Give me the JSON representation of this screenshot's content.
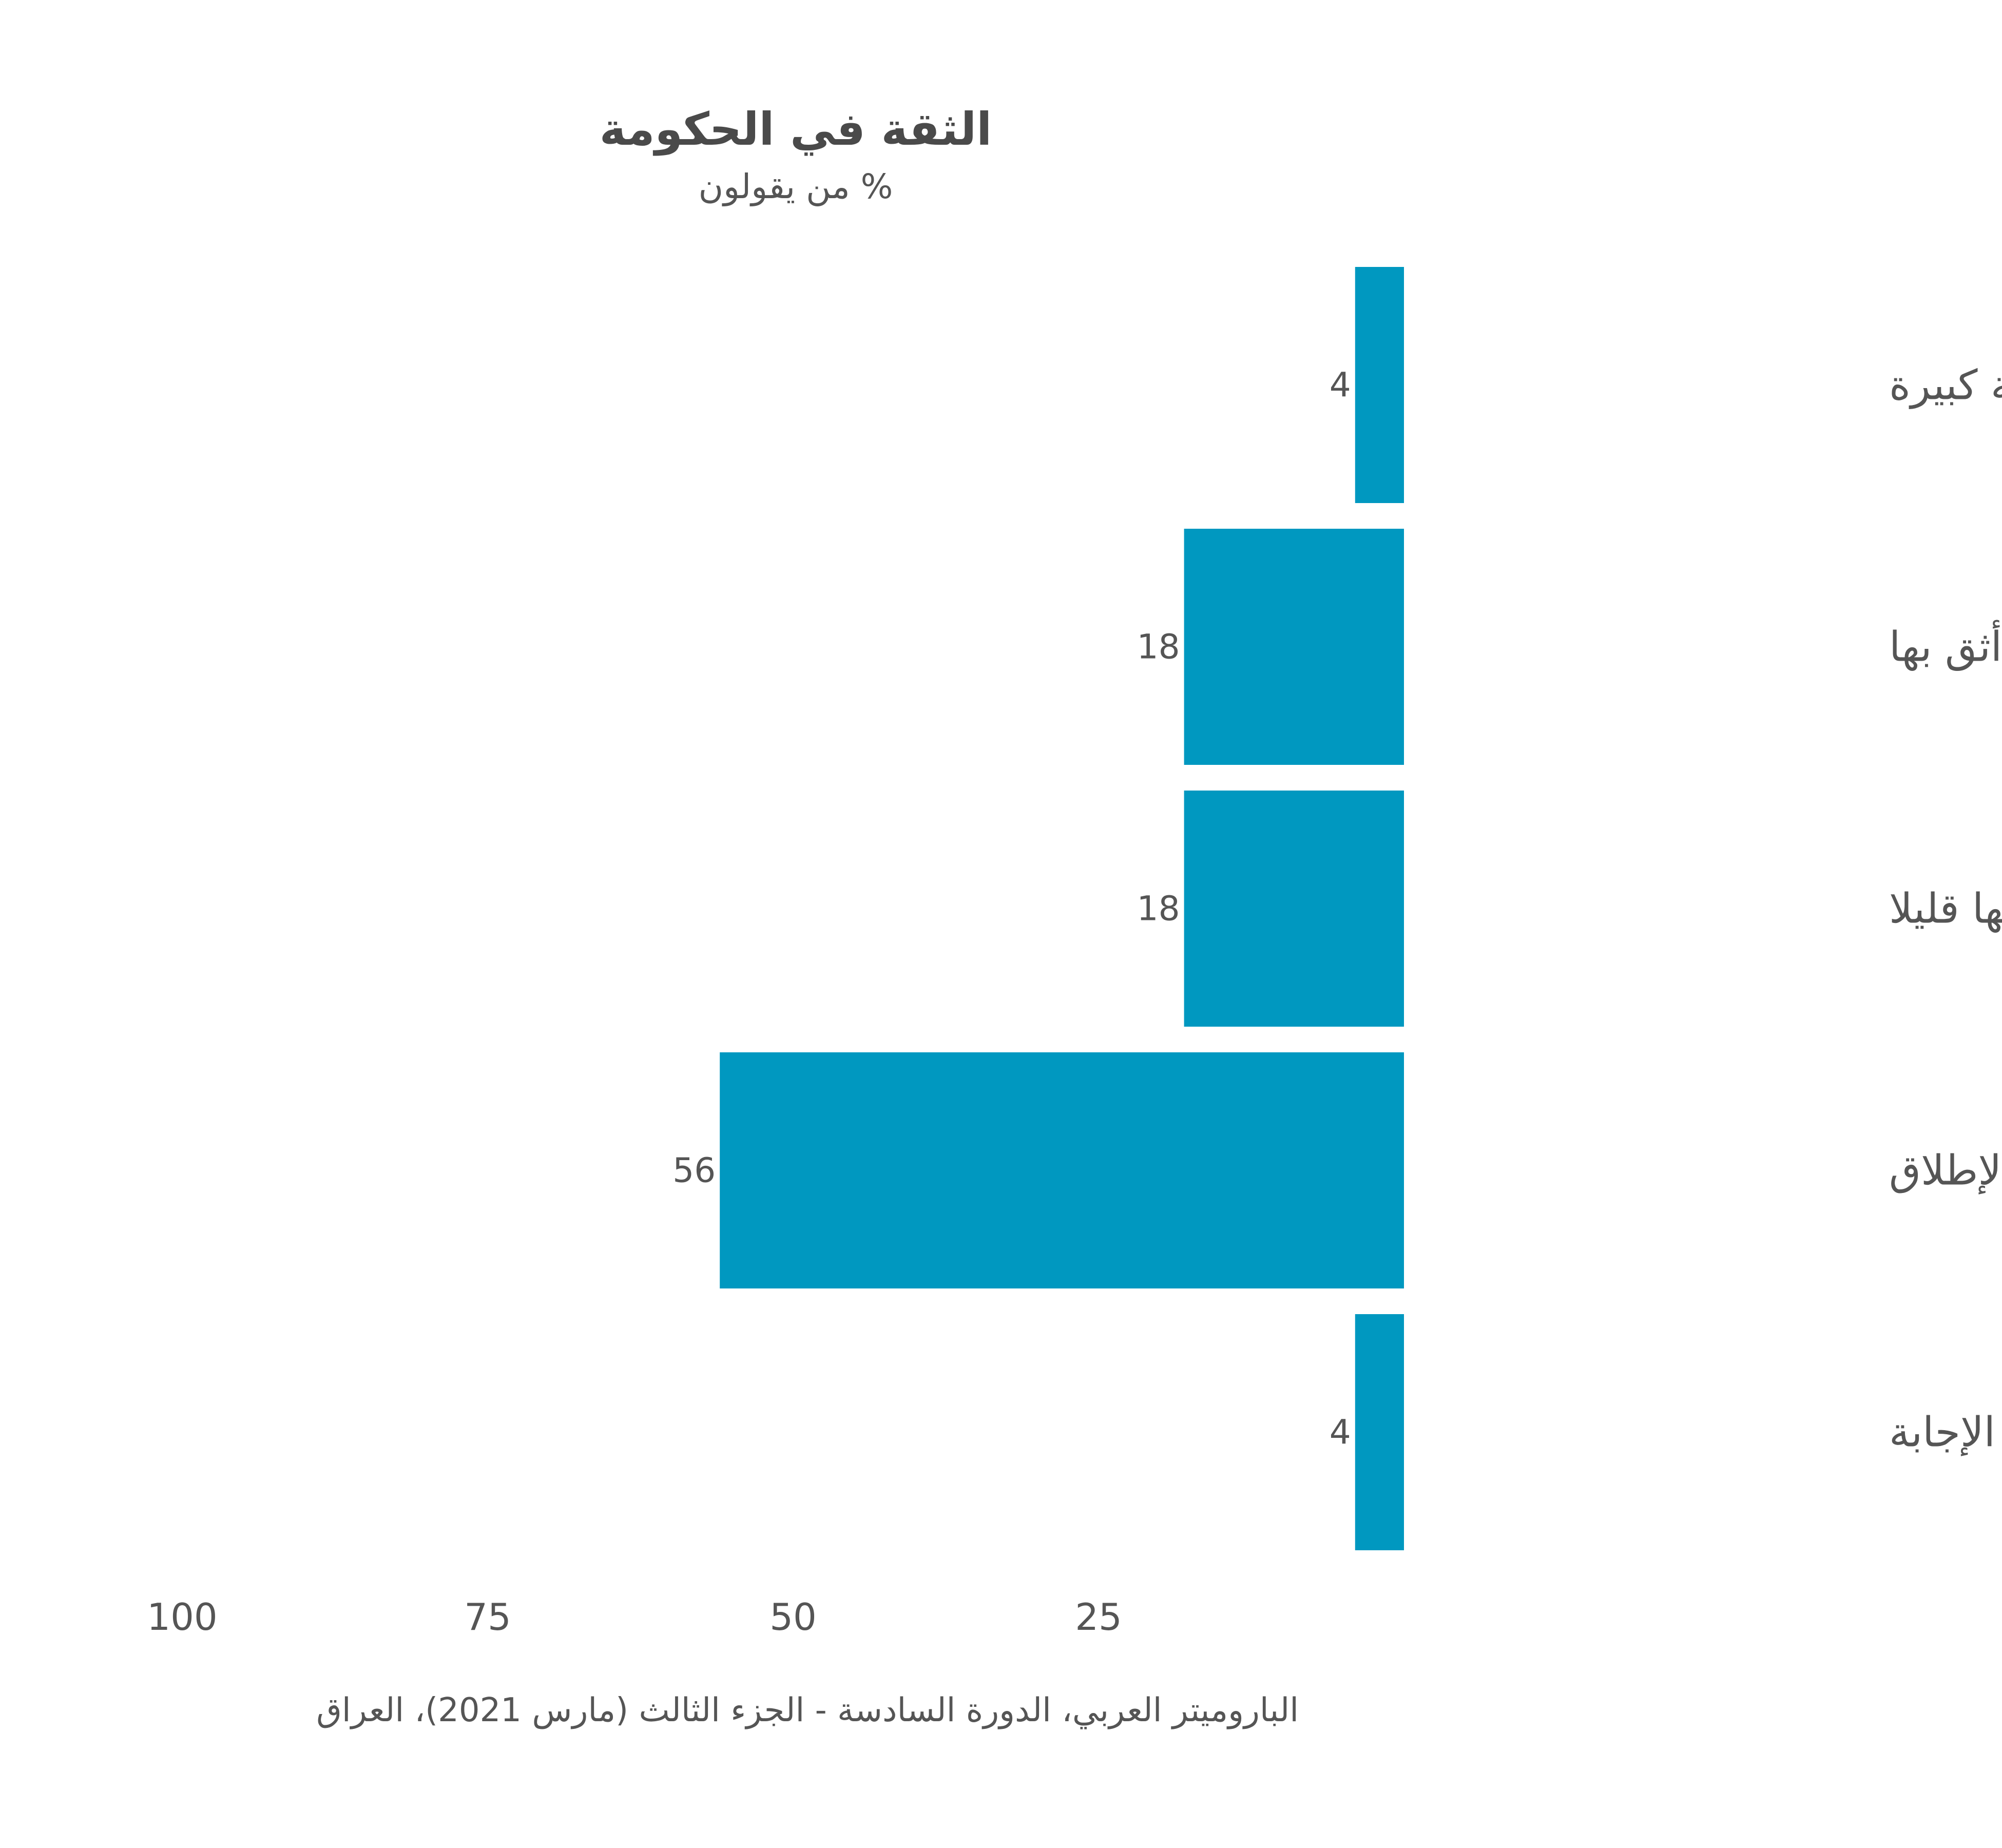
{
  "chart_data": {
    "type": "bar",
    "orientation": "horizontal",
    "direction": "rtl",
    "title": "الثقة في الحكومة",
    "subtitle": "% من يقولون",
    "categories": [
      "أثق بها إلى درجة كبيرة",
      "أثق بها",
      "أثق بها قليلا",
      "لا أثق بها على الإطلاق",
      "لا أعرف/رفض الإجابة"
    ],
    "values": [
      4,
      18,
      18,
      56,
      4
    ],
    "data_labels": [
      "4",
      "18",
      "18",
      "56",
      "4"
    ],
    "x_ticks": [
      100,
      75,
      50,
      25
    ],
    "x_tick_labels": [
      "100",
      "75",
      "50",
      "25"
    ],
    "xlim": [
      0,
      100
    ],
    "grid": false,
    "legend": "none",
    "bar_color": "#0098c0",
    "source": "الباروميتر العربي، الدورة السادسة - الجزء الثالث (مارس 2021)، العراق"
  }
}
